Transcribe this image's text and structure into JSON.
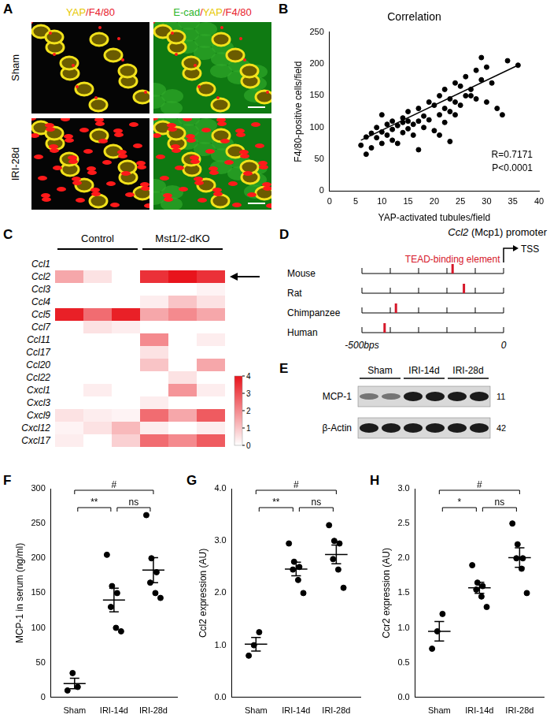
{
  "images": {
    "panel": "A",
    "headers": [
      [
        {
          "text": "YAP",
          "color": "#e6c700"
        },
        {
          "text": "/F4/80",
          "color": "#e8202a"
        }
      ],
      [
        {
          "text": "E-cad",
          "color": "#2db52d"
        },
        {
          "text": "/",
          "color": "#e8202a"
        },
        {
          "text": "YAP",
          "color": "#e6c700"
        },
        {
          "text": "/F4/80",
          "color": "#e8202a"
        }
      ]
    ],
    "rows": [
      "Sham",
      "IRI-28d"
    ]
  },
  "promoter": {
    "panel": "D",
    "title_gene": "Ccl2",
    "title_rest": " (Mcp1) promoter",
    "tss": "TSS",
    "element_label": "TEAD-binding element",
    "element_color": "#d6172a",
    "xlim": [
      -500,
      0
    ],
    "xticks": [
      -500,
      -400,
      -300,
      -200,
      -100,
      0
    ],
    "axis_labels": [
      {
        "value": -500,
        "label": "-500bps"
      },
      {
        "value": 0,
        "label": "0"
      }
    ],
    "species": [
      {
        "name": "Mouse",
        "tead_position": -180
      },
      {
        "name": "Rat",
        "tead_position": -140
      },
      {
        "name": "Chimpanzee",
        "tead_position": -380
      },
      {
        "name": "Human",
        "tead_position": -420
      }
    ]
  },
  "blot": {
    "panel": "E",
    "groups": [
      {
        "name": "Sham",
        "lanes": 2
      },
      {
        "name": "IRI-14d",
        "lanes": 2
      },
      {
        "name": "IRI-28d",
        "lanes": 2
      }
    ],
    "bands": [
      {
        "name": "MCP-1",
        "kda": 11
      },
      {
        "name": "β-Actin",
        "kda": 42
      }
    ]
  },
  "chart_data": [
    {
      "panel": "B",
      "type": "scatter",
      "title": "Correlation",
      "x_label": "YAP-activated tubules/field",
      "y_label": "F4/80-positive cells/field",
      "x": [
        6,
        7,
        8,
        8,
        9,
        9,
        10,
        10,
        11,
        11,
        12,
        12,
        12,
        13,
        13,
        14,
        14,
        15,
        15,
        15,
        16,
        16,
        17,
        17,
        17,
        18,
        18,
        19,
        19,
        20,
        20,
        21,
        21,
        21,
        22,
        22,
        22,
        23,
        23,
        23,
        24,
        24,
        24,
        25,
        25,
        26,
        26,
        27,
        27,
        28,
        28,
        29,
        29,
        30,
        30,
        31,
        32,
        33,
        34,
        36,
        10,
        7,
        14
      ],
      "values": [
        72,
        58,
        91,
        68,
        84,
        100,
        75,
        93,
        88,
        105,
        80,
        110,
        97,
        75,
        103,
        108,
        92,
        110,
        98,
        125,
        105,
        88,
        110,
        65,
        130,
        100,
        118,
        112,
        140,
        95,
        135,
        120,
        88,
        150,
        160,
        130,
        108,
        125,
        145,
        78,
        170,
        140,
        120,
        165,
        135,
        180,
        150,
        150,
        160,
        190,
        145,
        210,
        175,
        195,
        140,
        170,
        130,
        120,
        205,
        198,
        120,
        85,
        115
      ],
      "fit": {
        "x": [
          6,
          36
        ],
        "values": [
          80,
          198
        ]
      },
      "annotations": [
        "R=0.7171",
        "P<0.0001"
      ],
      "color": "#000000",
      "xlim": [
        0,
        40
      ],
      "xticks": [
        0,
        5,
        10,
        15,
        20,
        25,
        30,
        35,
        40
      ],
      "ylim": [
        0,
        250
      ],
      "yticks": [
        0,
        50,
        100,
        150,
        200,
        250
      ],
      "grid": false
    },
    {
      "panel": "C",
      "type": "heatmap",
      "rows": [
        "Ccl1",
        "Ccl2",
        "Ccl3",
        "Ccl4",
        "Ccl5",
        "Ccl7",
        "Ccl11",
        "Ccl17",
        "Ccl20",
        "Ccl22",
        "Cxcl1",
        "Cxcl3",
        "Cxcl9",
        "Cxcl12",
        "Cxcl17"
      ],
      "groups": [
        {
          "name": "Control",
          "n": 3
        },
        {
          "name": "Mst1/2-dKO",
          "n": 3
        }
      ],
      "cells": [
        [
          0,
          0,
          0,
          0,
          0,
          0
        ],
        [
          1.5,
          0.5,
          0,
          3.5,
          4.2,
          3.5
        ],
        [
          0,
          0,
          0,
          0,
          0,
          0.2
        ],
        [
          0,
          0,
          0,
          0.3,
          1,
          0.5
        ],
        [
          3.8,
          2.5,
          3.8,
          1.5,
          2,
          1.5
        ],
        [
          0,
          0.5,
          0.3,
          0,
          0,
          0
        ],
        [
          0,
          0,
          0,
          2,
          0,
          0.3
        ],
        [
          0,
          0,
          0,
          0.5,
          0,
          0
        ],
        [
          0,
          0,
          0,
          1,
          0,
          1.5
        ],
        [
          0,
          0,
          0,
          0,
          0.5,
          0
        ],
        [
          0,
          0.3,
          0,
          0,
          1.8,
          0.3
        ],
        [
          0,
          0,
          0,
          0.3,
          0,
          0
        ],
        [
          0.5,
          0.3,
          0.2,
          2.5,
          1.5,
          2.8
        ],
        [
          0.2,
          0.5,
          1.2,
          0.3,
          0,
          0.3
        ],
        [
          0.3,
          0,
          0.8,
          2.5,
          2,
          2.8
        ]
      ],
      "highlight": "Ccl2",
      "color": "#e8141c",
      "colorbar_range": [
        0,
        4
      ],
      "colorbar_ticks": [
        0,
        1,
        2,
        3,
        4
      ]
    },
    {
      "panel": "F",
      "type": "dot",
      "y_label": "MCP-1 in serum (ng/ml)",
      "categories": [
        "Sham",
        "IRI-14d",
        "IRI-28d"
      ],
      "values": [
        [
          10,
          35,
          15
        ],
        [
          205,
          160,
          150,
          130,
          100,
          95
        ],
        [
          262,
          200,
          180,
          165,
          150,
          143
        ]
      ],
      "means": [
        20,
        140,
        183
      ],
      "errors": [
        7.6,
        17,
        18
      ],
      "comparisons": [
        {
          "groups": [
            "Sham",
            "IRI-14d"
          ],
          "label": "**"
        },
        {
          "groups": [
            "IRI-14d",
            "IRI-28d"
          ],
          "label": "ns"
        },
        {
          "groups": [
            "Sham",
            "IRI-28d"
          ],
          "label": "#"
        }
      ],
      "color": "#000000",
      "ylim": [
        0,
        300
      ],
      "yticks": [
        0,
        50,
        100,
        150,
        200,
        250,
        300
      ],
      "grid": false
    },
    {
      "panel": "G",
      "type": "dot",
      "y_label": "Ccl2 expression (AU)",
      "categories": [
        "Sham",
        "IRI-14d",
        "IRI-28d"
      ],
      "values": [
        [
          0.8,
          1.0,
          1.25
        ],
        [
          2.95,
          2.6,
          2.5,
          2.45,
          2.25,
          2.0
        ],
        [
          3.3,
          3.0,
          2.95,
          2.65,
          2.45,
          2.1
        ]
      ],
      "means": [
        1.02,
        2.46,
        2.74
      ],
      "errors": [
        0.13,
        0.13,
        0.18
      ],
      "comparisons": [
        {
          "groups": [
            "Sham",
            "IRI-14d"
          ],
          "label": "**"
        },
        {
          "groups": [
            "IRI-14d",
            "IRI-28d"
          ],
          "label": "ns"
        },
        {
          "groups": [
            "Sham",
            "IRI-28d"
          ],
          "label": "#"
        }
      ],
      "color": "#000000",
      "ylim": [
        0,
        4
      ],
      "yticks": [
        {
          "value": 0,
          "label": "0.0"
        },
        {
          "value": 1,
          "label": "1.0"
        },
        {
          "value": 2,
          "label": "2.0"
        },
        {
          "value": 3,
          "label": "3.0"
        },
        {
          "value": 4,
          "label": "4.0"
        }
      ],
      "grid": false
    },
    {
      "panel": "H",
      "type": "dot",
      "y_label": "Ccr2 expression (AU)",
      "categories": [
        "Sham",
        "IRI-14d",
        "IRI-28d"
      ],
      "values": [
        [
          0.7,
          0.95,
          1.2
        ],
        [
          1.9,
          1.65,
          1.6,
          1.55,
          1.45,
          1.3
        ],
        [
          2.5,
          2.2,
          2.0,
          2.0,
          1.85,
          1.5
        ]
      ],
      "means": [
        0.95,
        1.575,
        2.01
      ],
      "errors": [
        0.14,
        0.08,
        0.14
      ],
      "comparisons": [
        {
          "groups": [
            "Sham",
            "IRI-14d"
          ],
          "label": "*"
        },
        {
          "groups": [
            "IRI-14d",
            "IRI-28d"
          ],
          "label": "ns"
        },
        {
          "groups": [
            "Sham",
            "IRI-28d"
          ],
          "label": "#"
        }
      ],
      "color": "#000000",
      "ylim": [
        0,
        3
      ],
      "yticks": [
        {
          "value": 0,
          "label": "0.0"
        },
        {
          "value": 0.5,
          "label": "0.5"
        },
        {
          "value": 1,
          "label": "1.0"
        },
        {
          "value": 1.5,
          "label": "1.5"
        },
        {
          "value": 2,
          "label": "2.0"
        },
        {
          "value": 2.5,
          "label": "2.5"
        },
        {
          "value": 3,
          "label": "3.0"
        }
      ],
      "grid": false
    }
  ]
}
